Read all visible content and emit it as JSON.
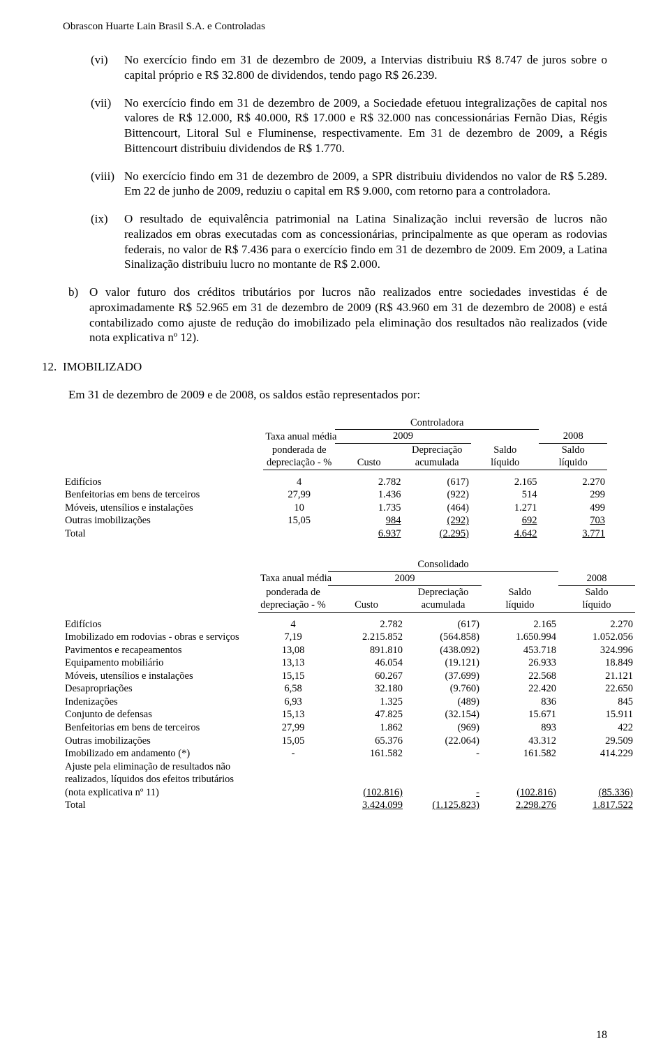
{
  "header": "Obrascon Huarte Lain Brasil S.A. e Controladas",
  "paragraphs": {
    "vi_label": "(vi)",
    "vi": "No exercício findo em 31 de dezembro de 2009, a Intervias distribuiu R$ 8.747 de juros sobre o capital próprio e R$ 32.800 de dividendos, tendo pago R$ 26.239.",
    "vii_label": "(vii)",
    "vii": "No exercício findo em 31 de dezembro de 2009, a Sociedade efetuou integralizações de capital nos valores de R$ 12.000, R$ 40.000, R$ 17.000 e R$ 32.000 nas concessionárias Fernão Dias, Régis Bittencourt, Litoral Sul e Fluminense, respectivamente. Em 31 de dezembro de 2009, a Régis Bittencourt distribuiu dividendos de R$ 1.770.",
    "viii_label": "(viii)",
    "viii": "No exercício findo em 31 de dezembro de 2009, a SPR distribuiu dividendos no valor de R$ 5.289. Em 22 de junho de 2009, reduziu o capital em R$ 9.000, com retorno para a controladora.",
    "ix_label": "(ix)",
    "ix": "O resultado de equivalência patrimonial na Latina Sinalização inclui reversão de lucros não realizados em obras executadas com as concessionárias, principalmente as que operam as rodovias federais, no valor de R$ 7.436 para o exercício findo em 31 de dezembro de 2009. Em 2009, a Latina Sinalização distribuiu lucro no montante de R$ 2.000.",
    "b_label": "b)",
    "b": "O valor futuro dos créditos tributários por lucros não realizados entre sociedades investidas é de aproximadamente R$ 52.965 em 31 de dezembro de 2009 (R$ 43.960 em 31 de dezembro de 2008) e está contabilizado como ajuste de redução do imobilizado pela eliminação dos resultados não realizados (vide nota explicativa nº 12).",
    "sec_num": "12.",
    "sec_title": "IMOBILIZADO",
    "intro": "Em 31 de dezembro de 2009 e de 2008, os saldos estão representados por:"
  },
  "table_headers": {
    "group1": "Controladora",
    "group2": "Consolidado",
    "rate1": "Taxa anual média",
    "rate2": "ponderada de",
    "rate3": "depreciação - %",
    "y2009": "2009",
    "y2008": "2008",
    "custo": "Custo",
    "depr1": "Depreciação",
    "depr2": "acumulada",
    "saldo": "Saldo",
    "liquido": "líquido"
  },
  "table1": {
    "rows": [
      {
        "label": "Edifícios",
        "rate": "4",
        "custo": "2.782",
        "depr": "(617)",
        "sl09": "2.165",
        "sl08": "2.270"
      },
      {
        "label": "Benfeitorias em bens de terceiros",
        "rate": "27,99",
        "custo": "1.436",
        "depr": "(922)",
        "sl09": "514",
        "sl08": "299"
      },
      {
        "label": "Móveis, utensílios e instalações",
        "rate": "10",
        "custo": "1.735",
        "depr": "(464)",
        "sl09": "1.271",
        "sl08": "499"
      },
      {
        "label": "Outras imobilizações",
        "rate": "15,05",
        "custo": "984",
        "depr": "(292)",
        "sl09": "692",
        "sl08": "703",
        "underline": true
      }
    ],
    "total": {
      "label": "Total",
      "custo": "6.937",
      "depr": "(2.295)",
      "sl09": "4.642",
      "sl08": "3.771"
    }
  },
  "table2": {
    "rows": [
      {
        "label": "Edifícios",
        "rate": "4",
        "custo": "2.782",
        "depr": "(617)",
        "sl09": "2.165",
        "sl08": "2.270"
      },
      {
        "label": "Imobilizado em rodovias - obras e serviços",
        "rate": "7,19",
        "custo": "2.215.852",
        "depr": "(564.858)",
        "sl09": "1.650.994",
        "sl08": "1.052.056"
      },
      {
        "label": "Pavimentos e recapeamentos",
        "rate": "13,08",
        "custo": "891.810",
        "depr": "(438.092)",
        "sl09": "453.718",
        "sl08": "324.996"
      },
      {
        "label": "Equipamento mobiliário",
        "rate": "13,13",
        "custo": "46.054",
        "depr": "(19.121)",
        "sl09": "26.933",
        "sl08": "18.849"
      },
      {
        "label": "Móveis, utensílios e instalações",
        "rate": "15,15",
        "custo": "60.267",
        "depr": "(37.699)",
        "sl09": "22.568",
        "sl08": "21.121"
      },
      {
        "label": "Desapropriações",
        "rate": "6,58",
        "custo": "32.180",
        "depr": "(9.760)",
        "sl09": "22.420",
        "sl08": "22.650"
      },
      {
        "label": "Indenizações",
        "rate": "6,93",
        "custo": "1.325",
        "depr": "(489)",
        "sl09": "836",
        "sl08": "845"
      },
      {
        "label": "Conjunto de defensas",
        "rate": "15,13",
        "custo": "47.825",
        "depr": "(32.154)",
        "sl09": "15.671",
        "sl08": "15.911"
      },
      {
        "label": "Benfeitorias em bens de terceiros",
        "rate": "27,99",
        "custo": "1.862",
        "depr": "(969)",
        "sl09": "893",
        "sl08": "422"
      },
      {
        "label": "Outras imobilizações",
        "rate": "15,05",
        "custo": "65.376",
        "depr": "(22.064)",
        "sl09": "43.312",
        "sl08": "29.509"
      },
      {
        "label": "Imobilizado em andamento (*)",
        "rate": "-",
        "custo": "161.582",
        "depr": "-",
        "sl09": "161.582",
        "sl08": "414.229"
      }
    ],
    "adj_label1": "Ajuste pela eliminação de resultados não",
    "adj_label2": "realizados, líquidos dos efeitos tributários",
    "adj_label3": "(nota explicativa nº 11)",
    "adj": {
      "custo": "(102.816)",
      "depr": "-",
      "sl09": "(102.816)",
      "sl08": "(85.336)"
    },
    "total": {
      "label": "Total",
      "custo": "3.424.099",
      "depr": "(1.125.823)",
      "sl09": "2.298.276",
      "sl08": "1.817.522"
    }
  },
  "page_number": "18"
}
